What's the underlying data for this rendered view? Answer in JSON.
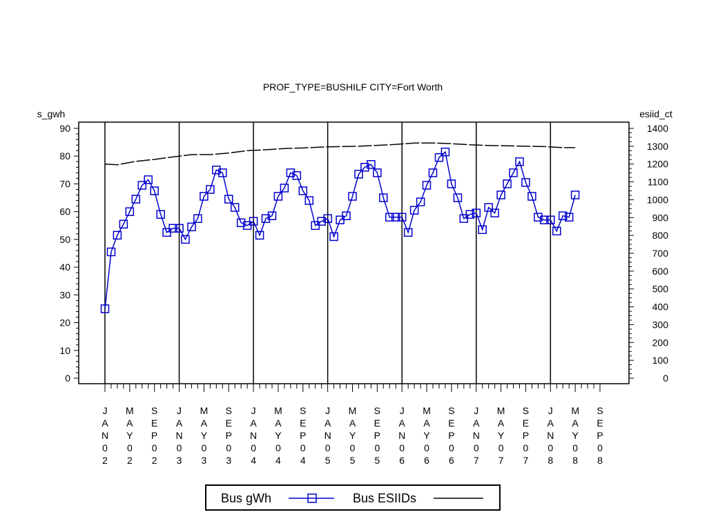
{
  "chart_data": {
    "type": "line",
    "title": "PROF_TYPE=BUSHILF CITY=Fort Worth",
    "ylabel_left": "s_gwh",
    "ylabel_right": "esiid_ct",
    "ylim_left": [
      0,
      90
    ],
    "ylim_right": [
      0,
      1400
    ],
    "yticks_left": [
      0,
      10,
      20,
      30,
      40,
      50,
      60,
      70,
      80,
      90
    ],
    "yticks_right": [
      0,
      100,
      200,
      300,
      400,
      500,
      600,
      700,
      800,
      900,
      1000,
      1100,
      1200,
      1300,
      1400
    ],
    "x_tick_labels": [
      [
        "J",
        "A",
        "N",
        "0",
        "2"
      ],
      [
        "M",
        "A",
        "Y",
        "0",
        "2"
      ],
      [
        "S",
        "E",
        "P",
        "0",
        "2"
      ],
      [
        "J",
        "A",
        "N",
        "0",
        "3"
      ],
      [
        "M",
        "A",
        "Y",
        "0",
        "3"
      ],
      [
        "S",
        "E",
        "P",
        "0",
        "3"
      ],
      [
        "J",
        "A",
        "N",
        "0",
        "4"
      ],
      [
        "M",
        "A",
        "Y",
        "0",
        "4"
      ],
      [
        "S",
        "E",
        "P",
        "0",
        "4"
      ],
      [
        "J",
        "A",
        "N",
        "0",
        "5"
      ],
      [
        "M",
        "A",
        "Y",
        "0",
        "5"
      ],
      [
        "S",
        "E",
        "P",
        "0",
        "5"
      ],
      [
        "J",
        "A",
        "N",
        "0",
        "6"
      ],
      [
        "M",
        "A",
        "Y",
        "0",
        "6"
      ],
      [
        "S",
        "E",
        "P",
        "0",
        "6"
      ],
      [
        "J",
        "A",
        "N",
        "0",
        "7"
      ],
      [
        "M",
        "A",
        "Y",
        "0",
        "7"
      ],
      [
        "S",
        "E",
        "P",
        "0",
        "7"
      ],
      [
        "J",
        "A",
        "N",
        "0",
        "8"
      ],
      [
        "M",
        "A",
        "Y",
        "0",
        "8"
      ],
      [
        "S",
        "E",
        "P",
        "0",
        "8"
      ]
    ],
    "x_start": "2002-01",
    "x_end": "2008-09",
    "year_dividers": [
      "2002-01",
      "2003-01",
      "2004-01",
      "2005-01",
      "2006-01",
      "2007-01",
      "2008-01"
    ],
    "series": [
      {
        "name": "Bus gWh",
        "axis": "left",
        "color": "#0000cc",
        "marker": "square",
        "x": [
          "2002-01",
          "2002-02",
          "2002-03",
          "2002-04",
          "2002-05",
          "2002-06",
          "2002-07",
          "2002-08",
          "2002-09",
          "2002-10",
          "2002-11",
          "2002-12",
          "2003-01",
          "2003-02",
          "2003-03",
          "2003-04",
          "2003-05",
          "2003-06",
          "2003-07",
          "2003-08",
          "2003-09",
          "2003-10",
          "2003-11",
          "2003-12",
          "2004-01",
          "2004-02",
          "2004-03",
          "2004-04",
          "2004-05",
          "2004-06",
          "2004-07",
          "2004-08",
          "2004-09",
          "2004-10",
          "2004-11",
          "2004-12",
          "2005-01",
          "2005-02",
          "2005-03",
          "2005-04",
          "2005-05",
          "2005-06",
          "2005-07",
          "2005-08",
          "2005-09",
          "2005-10",
          "2005-11",
          "2005-12",
          "2006-01",
          "2006-02",
          "2006-03",
          "2006-04",
          "2006-05",
          "2006-06",
          "2006-07",
          "2006-08",
          "2006-09",
          "2006-10",
          "2006-11",
          "2006-12",
          "2007-01",
          "2007-02",
          "2007-03",
          "2007-04",
          "2007-05",
          "2007-06",
          "2007-07",
          "2007-08",
          "2007-09",
          "2007-10",
          "2007-11",
          "2007-12",
          "2008-01",
          "2008-02",
          "2008-03",
          "2008-04",
          "2008-05"
        ],
        "values": [
          25,
          45.5,
          51.5,
          55.5,
          60,
          64.5,
          69.5,
          71.5,
          67.5,
          59,
          52.5,
          54,
          54,
          50,
          54.5,
          57.5,
          65.5,
          68,
          75,
          74,
          64.5,
          61.5,
          56,
          55,
          56.5,
          51.5,
          57.5,
          58.5,
          65.5,
          68.5,
          74,
          73,
          67.5,
          64,
          55,
          56.5,
          57.5,
          51,
          57,
          58.5,
          65.5,
          73.5,
          76,
          77,
          74,
          65,
          58,
          58,
          58,
          52.5,
          60.5,
          63.5,
          69.5,
          74,
          79.5,
          81.5,
          70,
          65,
          57.5,
          59,
          59.5,
          53.5,
          61.5,
          59.5,
          66,
          70,
          74,
          78,
          70.5,
          65.5,
          58,
          57,
          57,
          53,
          58.5,
          58,
          66
        ]
      },
      {
        "name": "Bus ESIIDs",
        "axis": "right",
        "color": "#000000",
        "marker": "none",
        "dashed": true,
        "x": [
          "2002-01",
          "2002-03",
          "2002-06",
          "2002-09",
          "2002-12",
          "2003-03",
          "2003-06",
          "2003-09",
          "2003-12",
          "2004-03",
          "2004-06",
          "2004-09",
          "2004-12",
          "2005-03",
          "2005-06",
          "2005-09",
          "2005-12",
          "2006-03",
          "2006-06",
          "2006-09",
          "2006-12",
          "2007-03",
          "2007-06",
          "2007-09",
          "2007-12",
          "2008-03",
          "2008-05"
        ],
        "values": [
          1200,
          1196,
          1215,
          1226,
          1240,
          1253,
          1253,
          1262,
          1275,
          1280,
          1287,
          1290,
          1295,
          1298,
          1300,
          1305,
          1310,
          1318,
          1318,
          1314,
          1308,
          1304,
          1302,
          1300,
          1298,
          1292,
          1292
        ]
      }
    ],
    "legend": {
      "placement": "bottom-center",
      "entries": [
        "Bus gWh",
        "Bus ESIIDs"
      ]
    }
  }
}
